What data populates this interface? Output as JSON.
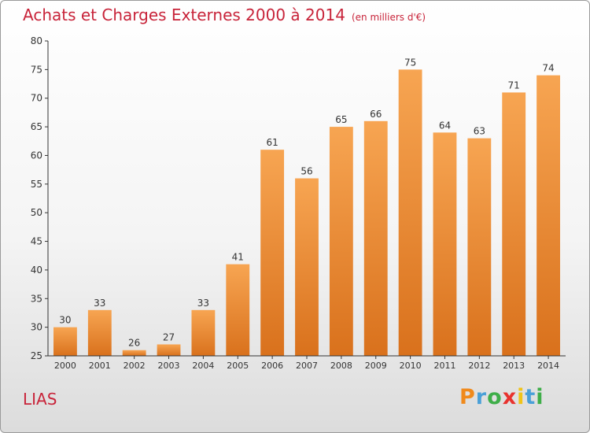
{
  "header": {
    "title": "Achats et Charges Externes 2000 à 2014",
    "unit": "(en milliers d'€)"
  },
  "footer": {
    "place": "LIAS",
    "logo": {
      "letters": [
        "P",
        "r",
        "o",
        "x",
        "i",
        "t",
        "i"
      ],
      "colors": [
        "#f08a1c",
        "#4aa0d8",
        "#3fae49",
        "#e8322e",
        "#f0c419",
        "#4aa0d8",
        "#3fae49"
      ]
    }
  },
  "chart_data": {
    "type": "bar",
    "title": "Achats et Charges Externes 2000 à 2014",
    "subtitle": "(en milliers d'€)",
    "categories": [
      "2000",
      "2001",
      "2002",
      "2003",
      "2004",
      "2005",
      "2006",
      "2007",
      "2008",
      "2009",
      "2010",
      "2011",
      "2012",
      "2013",
      "2014"
    ],
    "values": [
      30,
      33,
      26,
      27,
      33,
      41,
      61,
      56,
      65,
      66,
      75,
      64,
      63,
      71,
      74
    ],
    "ylim": [
      25,
      80
    ],
    "yticks": [
      25,
      30,
      35,
      40,
      45,
      50,
      55,
      60,
      65,
      70,
      75,
      80
    ],
    "grid": false,
    "bar_color_top": "#f7a552",
    "bar_color_bottom": "#d9711c",
    "label_color": "#333333",
    "axis_color": "#333333"
  }
}
